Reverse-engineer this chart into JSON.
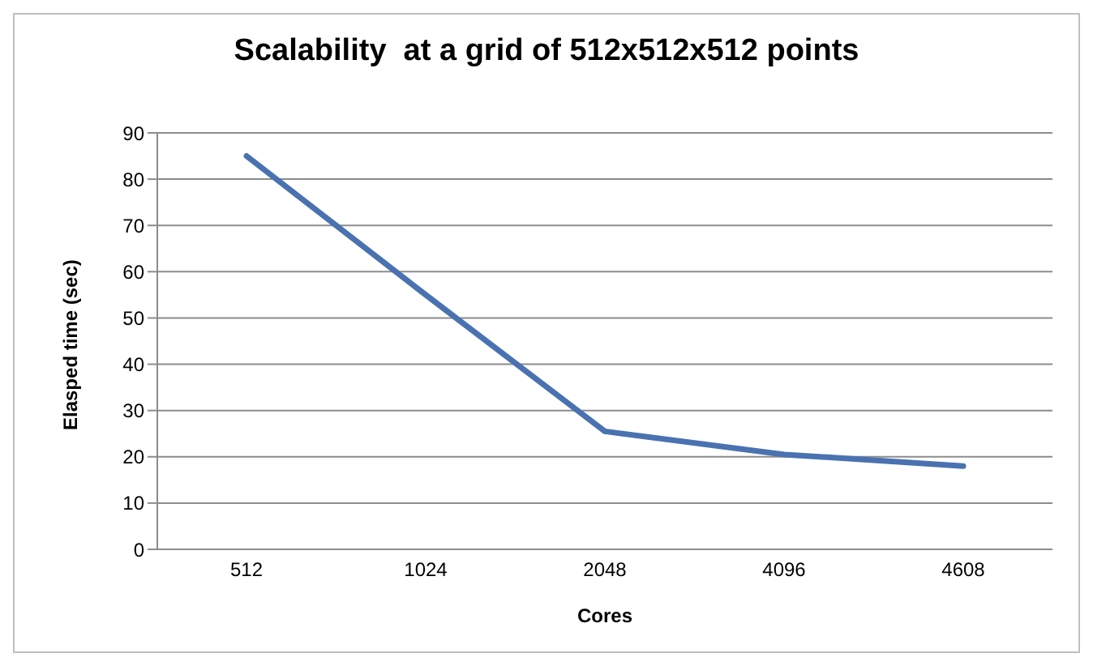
{
  "chart_data": {
    "type": "line",
    "title": "Scalability  at a grid of 512x512x512 points",
    "xlabel": "Cores",
    "ylabel": "Elasped time (sec)",
    "categories": [
      "512",
      "1024",
      "2048",
      "4096",
      "4608"
    ],
    "series": [
      {
        "color": "#4a72b0",
        "values": [
          85,
          55,
          25.5,
          20.5,
          18
        ]
      }
    ],
    "ylim": [
      0,
      90
    ],
    "yticks": [
      0,
      10,
      20,
      30,
      40,
      50,
      60,
      70,
      80,
      90
    ],
    "grid": "y",
    "legend": false,
    "marker": "none",
    "line_style": "solid"
  }
}
